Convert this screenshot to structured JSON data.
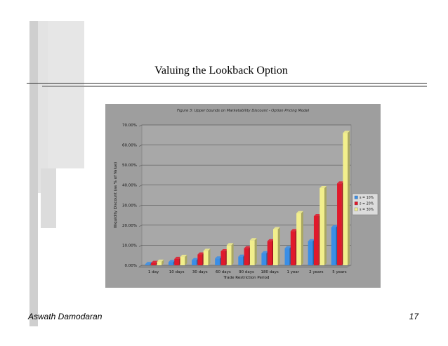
{
  "slide": {
    "title": "Valuing the Lookback Option",
    "author": "Aswath Damodaran",
    "page_number": "17"
  },
  "chart_data": {
    "type": "bar",
    "title": "Figure 3: Upper bounds on Marketability Discount - Option Pricing Model",
    "xlabel": "Trade Restriction Period",
    "ylabel": "Illiquidity Discount (as % of Value)",
    "ylim": [
      0,
      70
    ],
    "yticks": [
      "0.00%",
      "10.00%",
      "20.00%",
      "30.00%",
      "40.00%",
      "50.00%",
      "60.00%",
      "70.00%"
    ],
    "categories": [
      "1 day",
      "10 days",
      "30 days",
      "60 days",
      "90 days",
      "180 days",
      "1 year",
      "2 years",
      "5 years"
    ],
    "series": [
      {
        "name": "s = 10%",
        "color": "#3a8ee6",
        "values": [
          0.6,
          1.6,
          2.6,
          3.4,
          4.3,
          6.0,
          8.5,
          12.0,
          19.0
        ]
      },
      {
        "name": "s = 20%",
        "color": "#e0192b",
        "values": [
          1.2,
          3.2,
          5.4,
          7.0,
          8.5,
          12.0,
          17.0,
          24.5,
          40.8
        ]
      },
      {
        "name": "s = 30%",
        "color": "#f2ef8c",
        "values": [
          1.8,
          4.2,
          7.2,
          10.0,
          12.5,
          18.0,
          26.0,
          38.5,
          66.0
        ]
      }
    ],
    "legend_position": "right",
    "grid": true
  }
}
